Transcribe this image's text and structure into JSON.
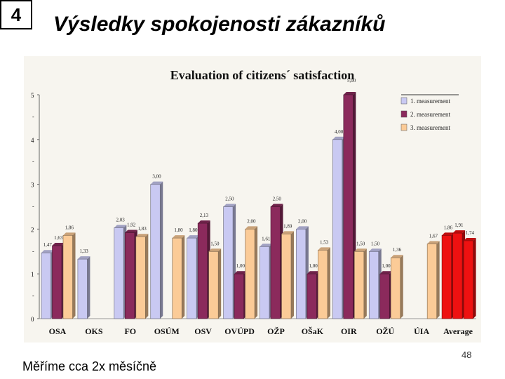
{
  "slide": {
    "number": "4",
    "title": "Výsledky spokojenosti zákazníků",
    "footer": "Měříme cca 2x měsíčně",
    "page_number": "48"
  },
  "chart_data": {
    "type": "bar",
    "title": "Evaluation of citizens´ satisfaction",
    "title_suffix": "5,00",
    "xlabel": "",
    "ylabel": "",
    "ylim": [
      0,
      5
    ],
    "y_ticks": [
      "0",
      "1",
      "2",
      "3",
      "4",
      "5"
    ],
    "categories": [
      "OSA",
      "OKS",
      "FO",
      "OSÚM",
      "OSV",
      "OVÚPD",
      "OŽP",
      "OŠaK",
      "OIR",
      "OŽÚ",
      "ÚIA",
      "Average"
    ],
    "series": [
      {
        "name": "1. measurement",
        "color": "#c9c9f2",
        "values": [
          1.47,
          1.33,
          2.03,
          3.0,
          1.8,
          2.5,
          1.61,
          2.0,
          4.0,
          1.5,
          null,
          1.86
        ],
        "labels": [
          "1,47",
          "1,33",
          "2,03",
          "3,00",
          "1,80",
          "2,50",
          "1,61",
          "2,00",
          "4,00",
          "1,50",
          "",
          "1,86"
        ]
      },
      {
        "name": "2. measurement",
        "color": "#8b2a5c",
        "values": [
          1.63,
          null,
          1.92,
          null,
          2.13,
          1.0,
          2.5,
          1.0,
          5.0,
          1.0,
          null,
          1.91
        ],
        "labels": [
          "1,63",
          "",
          "1,92",
          "",
          "2,13",
          "1,00",
          "2,50",
          "1,00",
          "",
          "1,00",
          "",
          "1,91"
        ]
      },
      {
        "name": "3. measurement",
        "color": "#fbcb97",
        "values": [
          1.86,
          null,
          1.83,
          1.8,
          1.5,
          2.0,
          1.89,
          1.53,
          1.5,
          1.36,
          1.67,
          1.74
        ],
        "labels": [
          "1,86",
          "",
          "1,83",
          "1,80",
          "1,50",
          "2,00",
          "1,89",
          "1,53",
          "1,50",
          "1,36",
          "1,67",
          "1,74"
        ]
      }
    ],
    "highlight": {
      "category": "Average",
      "color": "#ee1111"
    },
    "legend": {
      "position": "top-right"
    },
    "grid": false
  }
}
